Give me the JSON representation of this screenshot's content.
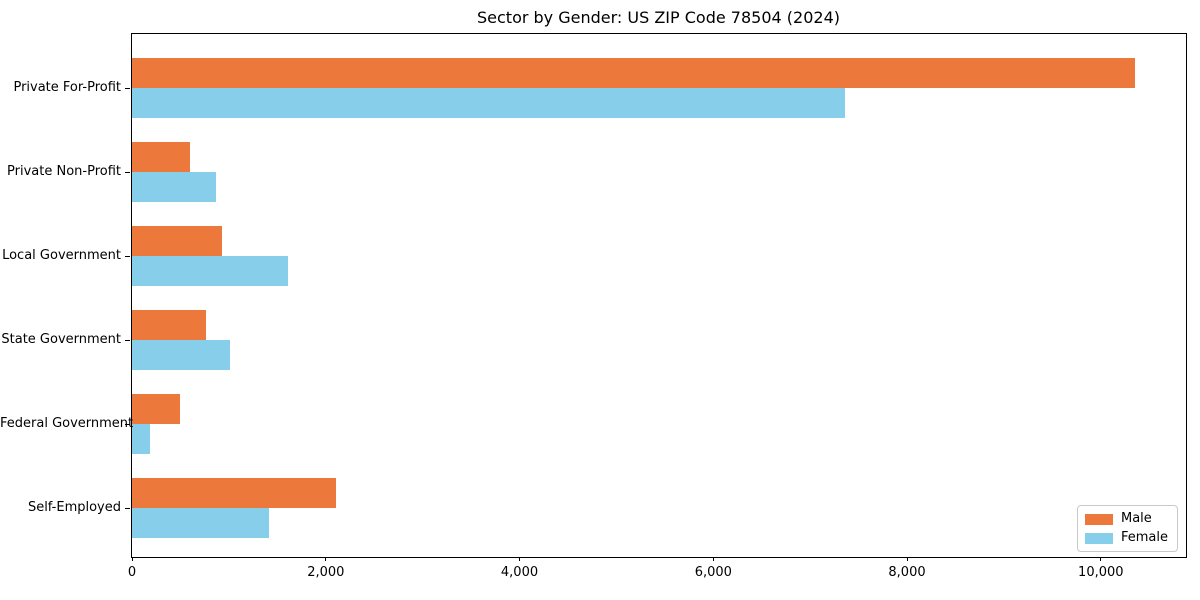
{
  "chart_data": {
    "type": "bar",
    "orientation": "horizontal",
    "title": "Sector by Gender: US ZIP Code 78504 (2024)",
    "xlabel": "",
    "ylabel": "",
    "categories": [
      "Private For-Profit",
      "Private Non-Profit",
      "Local Government",
      "State Government",
      "Federal Government",
      "Self-Employed"
    ],
    "series": [
      {
        "name": "Male",
        "color": "#ec783c",
        "values": [
          10350,
          600,
          930,
          760,
          500,
          2110
        ]
      },
      {
        "name": "Female",
        "color": "#87ceeb",
        "values": [
          7360,
          870,
          1610,
          1010,
          190,
          1410
        ]
      }
    ],
    "xlim": [
      0,
      10880
    ],
    "xticks": [
      0,
      2000,
      4000,
      6000,
      8000,
      10000
    ],
    "xtick_labels": [
      "0",
      "2,000",
      "4,000",
      "6,000",
      "8,000",
      "10,000"
    ],
    "grid": false,
    "legend_position": "lower right"
  }
}
